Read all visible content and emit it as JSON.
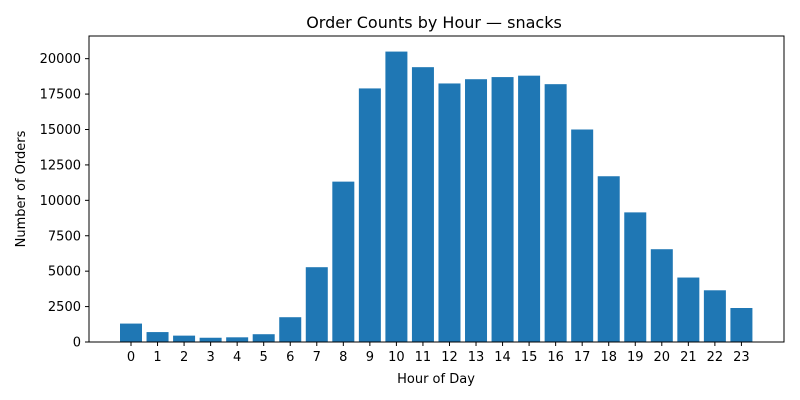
{
  "chart_data": {
    "type": "bar",
    "title": "Order Counts by Hour — snacks",
    "xlabel": "Hour of Day",
    "ylabel": "Number of Orders",
    "categories": [
      "0",
      "1",
      "2",
      "3",
      "4",
      "5",
      "6",
      "7",
      "8",
      "9",
      "10",
      "11",
      "12",
      "13",
      "14",
      "15",
      "16",
      "17",
      "18",
      "19",
      "20",
      "21",
      "22",
      "23"
    ],
    "values": [
      1300,
      700,
      450,
      300,
      330,
      550,
      1750,
      5280,
      11320,
      17900,
      20500,
      19400,
      18250,
      18550,
      18700,
      18800,
      18200,
      15000,
      11700,
      9150,
      6550,
      4550,
      3650,
      2400
    ],
    "yticks": [
      "0",
      "2500",
      "5000",
      "7500",
      "10000",
      "12500",
      "15000",
      "17500",
      "20000"
    ],
    "ylim": [
      0,
      21600
    ],
    "bar_color": "#1f77b4",
    "grid": false,
    "legend": "none"
  }
}
